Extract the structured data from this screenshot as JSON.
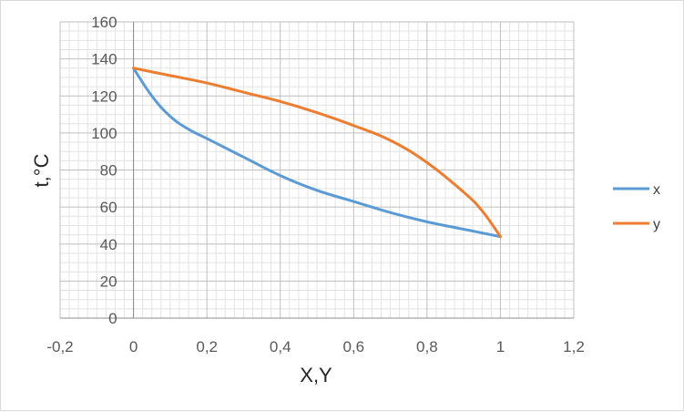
{
  "chart_data": {
    "type": "scatter",
    "title": "",
    "xlabel": "X,Y",
    "ylabel": "t,°C",
    "xlim": [
      -0.2,
      1.2
    ],
    "ylim": [
      0,
      160
    ],
    "xticks": [
      "-0,2",
      "0",
      "0,2",
      "0,4",
      "0,6",
      "0,8",
      "1",
      "1,2"
    ],
    "yticks": [
      "0",
      "20",
      "40",
      "60",
      "80",
      "100",
      "120",
      "140",
      "160"
    ],
    "grid": true,
    "legend_position": "right",
    "series": [
      {
        "name": "x",
        "color": "#5b9bd5",
        "x": [
          0,
          0.05,
          0.1,
          0.15,
          0.2,
          0.3,
          0.4,
          0.5,
          0.6,
          0.7,
          0.8,
          0.9,
          1.0
        ],
        "y": [
          135,
          120,
          109,
          102,
          97,
          87,
          77,
          69,
          63,
          57,
          52,
          48,
          44
        ]
      },
      {
        "name": "y",
        "color": "#ed7d31",
        "x": [
          0,
          0.1,
          0.2,
          0.3,
          0.4,
          0.5,
          0.6,
          0.7,
          0.8,
          0.9,
          0.95,
          1.0
        ],
        "y": [
          135,
          131,
          127,
          122,
          117,
          111,
          104,
          96,
          84,
          68,
          58,
          44
        ]
      }
    ]
  }
}
